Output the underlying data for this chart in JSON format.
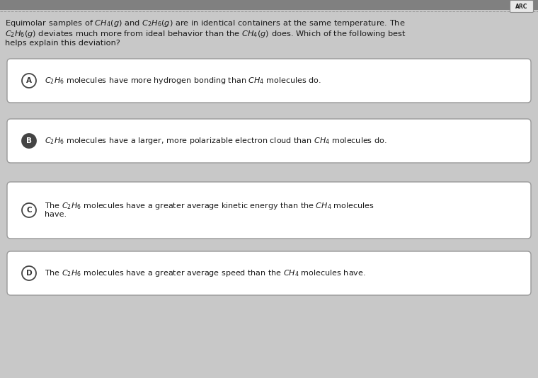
{
  "background_color": "#c8c8c8",
  "top_stripe_color": "#808080",
  "question_lines": [
    "Equimolar samples of $\\mathit{CH}_4(g)$ and $\\mathit{C}_2\\mathit{H}_6(g)$ are in identical containers at the same temperature. The",
    "$\\mathit{C}_2\\mathit{H}_6(g)$ deviates much more from ideal behavior than the $\\mathit{CH}_4(g)$ does. Which of the following best",
    "helps explain this deviation?"
  ],
  "options": [
    {
      "label": "A",
      "lines": [
        "$\\mathit{C}_2\\mathit{H}_6$ molecules have more hydrogen bonding than $\\mathit{CH}_4$ molecules do."
      ],
      "circle_fill": "white",
      "circle_edge": "#444444",
      "box_fill": "white",
      "box_edge": "#999999"
    },
    {
      "label": "B",
      "lines": [
        "$\\mathit{C}_2\\mathit{H}_6$ molecules have a larger, more polarizable electron cloud than $\\mathit{CH}_4$ molecules do."
      ],
      "circle_fill": "#444444",
      "circle_edge": "#444444",
      "box_fill": "white",
      "box_edge": "#999999"
    },
    {
      "label": "C",
      "lines": [
        "The $\\mathit{C}_2\\mathit{H}_6$ molecules have a greater average kinetic energy than the $\\mathit{CH}_4$ molecules",
        "have."
      ],
      "circle_fill": "white",
      "circle_edge": "#444444",
      "box_fill": "white",
      "box_edge": "#999999"
    },
    {
      "label": "D",
      "lines": [
        "The $\\mathit{C}_2\\mathit{H}_6$ molecules have a greater average speed than the $\\mathit{CH}_4$ molecules have."
      ],
      "circle_fill": "white",
      "circle_edge": "#444444",
      "box_fill": "white",
      "box_edge": "#999999"
    }
  ],
  "text_color": "#1a1a1a",
  "question_fontsize": 8.2,
  "option_fontsize": 8.0,
  "label_fontsize": 7.5
}
